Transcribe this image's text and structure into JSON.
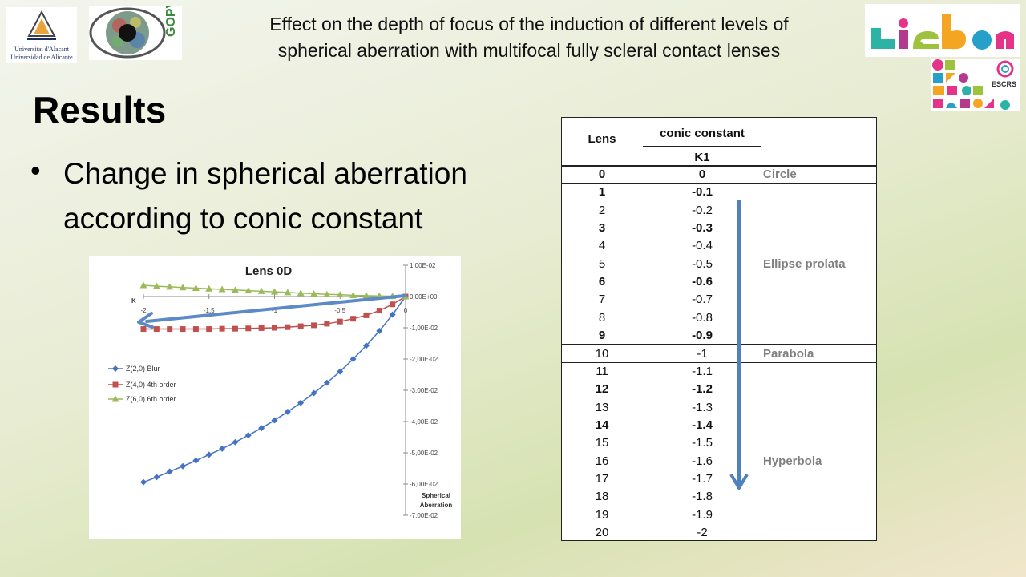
{
  "header": {
    "title_line1": "Effect on the depth of focus of the induction of different levels of",
    "title_line2": "spherical aberration with multifocal fully scleral contact lenses"
  },
  "logos": {
    "ua_line1": "Universitat d'Alacant",
    "ua_line2": "Universidad de Alicante",
    "gopv": "GOPV",
    "escrs": "ESCRS"
  },
  "section_title": "Results",
  "bullet": {
    "glyph": "•",
    "line1": "Change in spherical aberration",
    "line2": "according to conic constant"
  },
  "chart_data": {
    "type": "line",
    "title": "Lens 0D",
    "xlabel": "K",
    "ylabel": "Spherical Aberration",
    "x": [
      -2,
      -1.9,
      -1.8,
      -1.7,
      -1.6,
      -1.5,
      -1.4,
      -1.3,
      -1.2,
      -1.1,
      -1,
      -0.9,
      -0.8,
      -0.7,
      -0.6,
      -0.5,
      -0.4,
      -0.3,
      -0.2,
      -0.1,
      0
    ],
    "xticks": [
      "-2",
      "-1,5",
      "-1",
      "-0,5",
      "0"
    ],
    "xlim": [
      -2,
      0
    ],
    "ylim": [
      -0.07,
      0.01
    ],
    "yticks": [
      "1,00E-02",
      "0,00E+00",
      "-1,00E-02",
      "-2,00E-02",
      "-3,00E-02",
      "-4,00E-02",
      "-5,00E-02",
      "-6,00E-02",
      "-7,00E-02"
    ],
    "series": [
      {
        "name": "Z(2,0) Blur",
        "color": "#4472c4",
        "marker": "diamond",
        "values": [
          -0.0594,
          -0.0578,
          -0.056,
          -0.0543,
          -0.0525,
          -0.0506,
          -0.0487,
          -0.0466,
          -0.0444,
          -0.0421,
          -0.0396,
          -0.0369,
          -0.034,
          -0.0309,
          -0.0276,
          -0.024,
          -0.02,
          -0.0157,
          -0.011,
          -0.0058,
          0.0
        ]
      },
      {
        "name": "Z(4,0) 4th order",
        "color": "#c0504d",
        "marker": "square",
        "values": [
          -0.0104,
          -0.0104,
          -0.0104,
          -0.0104,
          -0.0104,
          -0.0104,
          -0.0103,
          -0.0103,
          -0.0102,
          -0.0101,
          -0.01,
          -0.0098,
          -0.0095,
          -0.0092,
          -0.0087,
          -0.008,
          -0.0071,
          -0.006,
          -0.0045,
          -0.0025,
          0.0
        ]
      },
      {
        "name": "Z(6,0) 6th order",
        "color": "#9bbb59",
        "marker": "triangle",
        "values": [
          0.0036,
          0.0033,
          0.0031,
          0.0029,
          0.0027,
          0.0025,
          0.0023,
          0.0021,
          0.0019,
          0.0017,
          0.0015,
          0.0013,
          0.0011,
          0.0009,
          0.0007,
          0.0006,
          0.0004,
          0.0003,
          0.0002,
          0.0001,
          0.0
        ]
      }
    ],
    "annotation": {
      "type": "arrow",
      "color": "#5b8ac6",
      "from": [
        0,
        0.0003
      ],
      "to": [
        -2,
        -0.0082
      ]
    }
  },
  "table": {
    "col_lens": "Lens",
    "col_conic": "conic constant",
    "sub_k1": "K1",
    "rows": [
      {
        "lens": "0",
        "k": "0",
        "shape": "Circle",
        "bold": true
      },
      {
        "lens": "1",
        "k": "-0.1",
        "shape": "",
        "bold": true
      },
      {
        "lens": "2",
        "k": "-0.2",
        "shape": "",
        "bold": false
      },
      {
        "lens": "3",
        "k": "-0.3",
        "shape": "",
        "bold": true
      },
      {
        "lens": "4",
        "k": "-0.4",
        "shape": "",
        "bold": false
      },
      {
        "lens": "5",
        "k": "-0.5",
        "shape": "Ellipse prolata",
        "bold": false
      },
      {
        "lens": "6",
        "k": "-0.6",
        "shape": "",
        "bold": true
      },
      {
        "lens": "7",
        "k": "-0.7",
        "shape": "",
        "bold": false
      },
      {
        "lens": "8",
        "k": "-0.8",
        "shape": "",
        "bold": false
      },
      {
        "lens": "9",
        "k": "-0.9",
        "shape": "",
        "bold": true
      },
      {
        "lens": "10",
        "k": "-1",
        "shape": "Parabola",
        "bold": false
      },
      {
        "lens": "11",
        "k": "-1.1",
        "shape": "",
        "bold": false
      },
      {
        "lens": "12",
        "k": "-1.2",
        "shape": "",
        "bold": true
      },
      {
        "lens": "13",
        "k": "-1.3",
        "shape": "",
        "bold": false
      },
      {
        "lens": "14",
        "k": "-1.4",
        "shape": "",
        "bold": true
      },
      {
        "lens": "15",
        "k": "-1.5",
        "shape": "",
        "bold": false
      },
      {
        "lens": "16",
        "k": "-1.6",
        "shape": "Hyperbola",
        "bold": false
      },
      {
        "lens": "17",
        "k": "-1.7",
        "shape": "",
        "bold": false
      },
      {
        "lens": "18",
        "k": "-1.8",
        "shape": "",
        "bold": false
      },
      {
        "lens": "19",
        "k": "-1.9",
        "shape": "",
        "bold": false
      },
      {
        "lens": "20",
        "k": "-2",
        "shape": "",
        "bold": false
      }
    ],
    "arrow_color": "#4f81bd"
  }
}
